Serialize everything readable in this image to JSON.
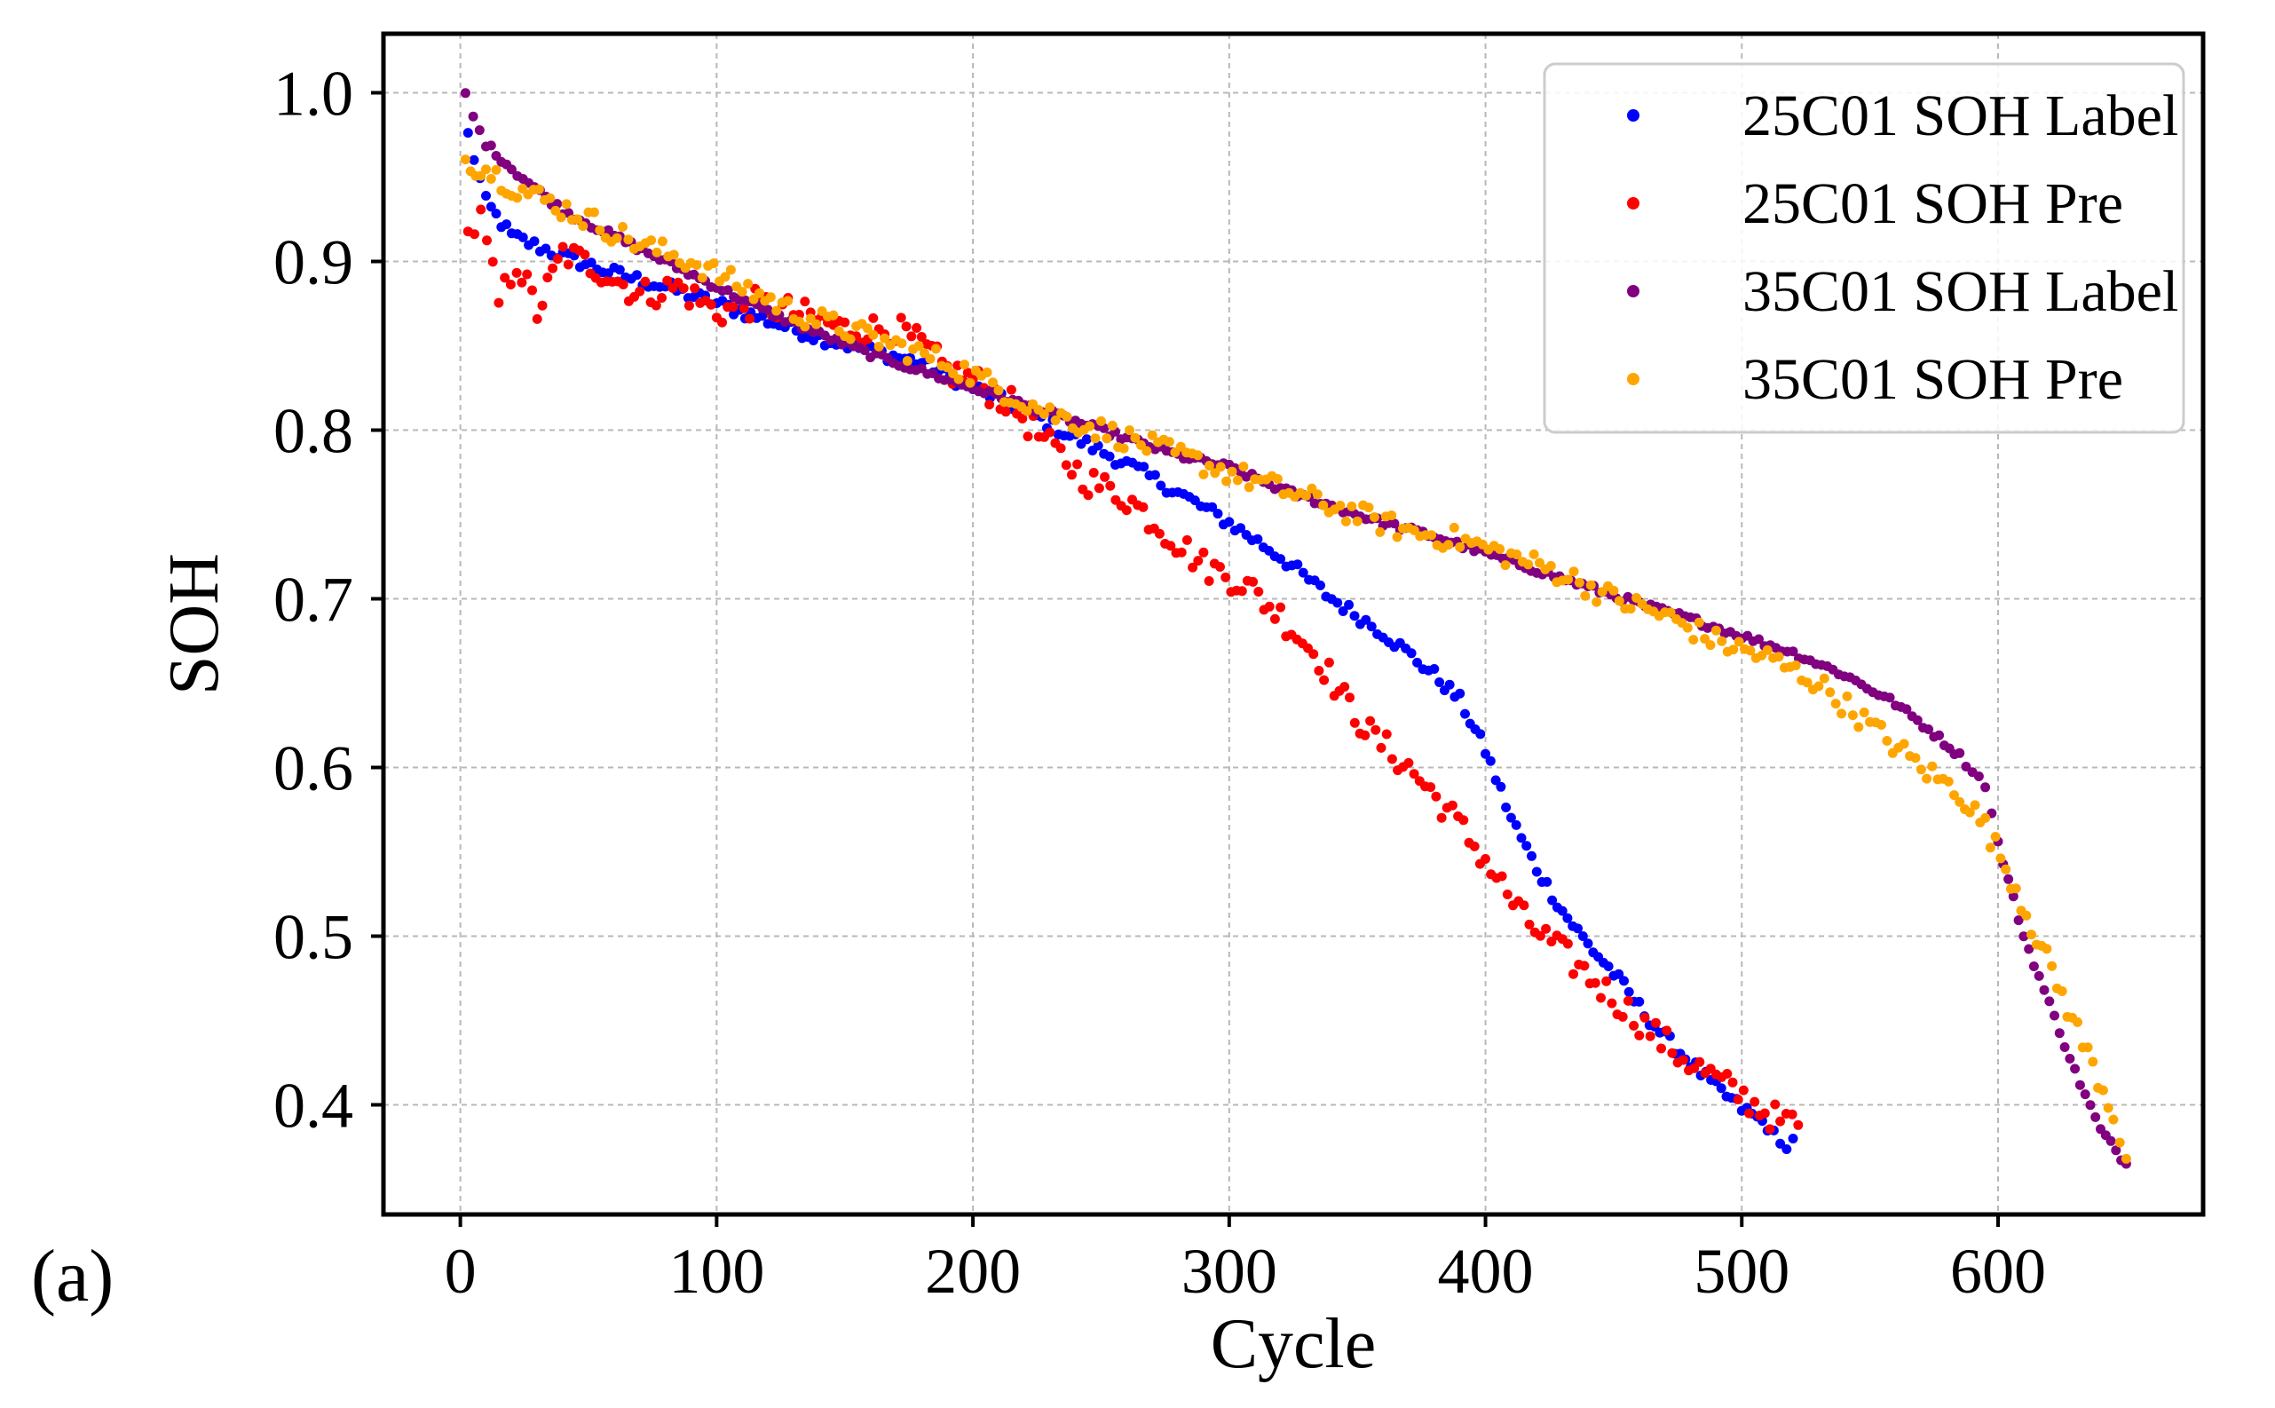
{
  "panel_label": "(a)",
  "colors": {
    "series_25C01_label": "#0000ff",
    "series_25C01_pre": "#ff0000",
    "series_35C01_label": "#800080",
    "series_35C01_pre": "#ffa500",
    "grid": "#b8b8b8",
    "axes": "#000000"
  },
  "chart_data": {
    "type": "scatter",
    "title": "",
    "xlabel": "Cycle",
    "ylabel": "SOH",
    "xlim": [
      -30,
      680
    ],
    "ylim": [
      0.335,
      1.035
    ],
    "xticks": [
      0,
      100,
      200,
      300,
      400,
      500,
      600
    ],
    "xtick_labels": [
      "0",
      "100",
      "200",
      "300",
      "400",
      "500",
      "600"
    ],
    "yticks": [
      0.4,
      0.5,
      0.6,
      0.7,
      0.8,
      0.9,
      1.0
    ],
    "ytick_labels": [
      "0.4",
      "0.5",
      "0.6",
      "0.7",
      "0.8",
      "0.9",
      "1.0"
    ],
    "grid": true,
    "legend_position": "top-right",
    "series": [
      {
        "name": "25C01 SOH Label",
        "color": "#0000ff",
        "x": [
          3,
          10,
          20,
          40,
          60,
          80,
          100,
          120,
          140,
          160,
          180,
          200,
          220,
          240,
          260,
          280,
          300,
          320,
          340,
          360,
          380,
          390,
          400,
          410,
          420,
          430,
          440,
          450,
          460,
          470,
          480,
          490,
          500,
          510,
          515,
          520
        ],
        "y": [
          0.975,
          0.935,
          0.915,
          0.903,
          0.893,
          0.885,
          0.875,
          0.865,
          0.855,
          0.847,
          0.84,
          0.825,
          0.812,
          0.795,
          0.78,
          0.763,
          0.745,
          0.725,
          0.7,
          0.68,
          0.655,
          0.64,
          0.61,
          0.57,
          0.54,
          0.515,
          0.495,
          0.478,
          0.458,
          0.44,
          0.425,
          0.41,
          0.398,
          0.388,
          0.375,
          0.38
        ]
      },
      {
        "name": "25C01 SOH Pre",
        "color": "#ff0000",
        "x": [
          3,
          8,
          15,
          22,
          30,
          40,
          55,
          70,
          85,
          100,
          115,
          130,
          150,
          170,
          180,
          190,
          200,
          215,
          230,
          245,
          260,
          275,
          290,
          305,
          320,
          335,
          345,
          355,
          370,
          385,
          400,
          415,
          430,
          445,
          460,
          475,
          490,
          505,
          515,
          522
        ],
        "y": [
          0.915,
          0.925,
          0.875,
          0.9,
          0.87,
          0.905,
          0.895,
          0.88,
          0.885,
          0.87,
          0.875,
          0.87,
          0.86,
          0.86,
          0.85,
          0.835,
          0.83,
          0.815,
          0.79,
          0.77,
          0.76,
          0.74,
          0.72,
          0.71,
          0.69,
          0.665,
          0.64,
          0.62,
          0.6,
          0.575,
          0.545,
          0.51,
          0.49,
          0.47,
          0.45,
          0.43,
          0.415,
          0.4,
          0.39,
          0.388
        ]
      },
      {
        "name": "35C01 SOH Label",
        "color": "#800080",
        "x": [
          2,
          5,
          10,
          20,
          40,
          60,
          80,
          100,
          120,
          140,
          160,
          180,
          200,
          220,
          240,
          260,
          280,
          300,
          320,
          340,
          360,
          380,
          400,
          420,
          440,
          460,
          480,
          500,
          520,
          540,
          560,
          575,
          585,
          590,
          595,
          600,
          610,
          620,
          630,
          640,
          650
        ],
        "y": [
          1.0,
          0.985,
          0.97,
          0.955,
          0.93,
          0.915,
          0.9,
          0.885,
          0.87,
          0.857,
          0.845,
          0.835,
          0.825,
          0.815,
          0.805,
          0.795,
          0.785,
          0.778,
          0.765,
          0.755,
          0.745,
          0.737,
          0.727,
          0.717,
          0.707,
          0.697,
          0.688,
          0.678,
          0.668,
          0.655,
          0.638,
          0.62,
          0.607,
          0.598,
          0.59,
          0.555,
          0.5,
          0.46,
          0.42,
          0.385,
          0.365
        ]
      },
      {
        "name": "35C01 SOH Pre",
        "color": "#ffa500",
        "x": [
          2,
          10,
          20,
          35,
          50,
          70,
          90,
          110,
          130,
          150,
          170,
          190,
          210,
          230,
          250,
          270,
          290,
          310,
          330,
          350,
          370,
          390,
          410,
          430,
          450,
          470,
          490,
          510,
          530,
          550,
          570,
          585,
          595,
          605,
          615,
          625,
          635,
          645,
          650
        ],
        "y": [
          0.96,
          0.955,
          0.945,
          0.935,
          0.925,
          0.91,
          0.9,
          0.885,
          0.87,
          0.86,
          0.85,
          0.84,
          0.825,
          0.81,
          0.8,
          0.79,
          0.78,
          0.77,
          0.76,
          0.75,
          0.74,
          0.735,
          0.725,
          0.715,
          0.7,
          0.69,
          0.675,
          0.665,
          0.65,
          0.625,
          0.6,
          0.585,
          0.565,
          0.535,
          0.5,
          0.465,
          0.43,
          0.395,
          0.368
        ]
      }
    ]
  }
}
